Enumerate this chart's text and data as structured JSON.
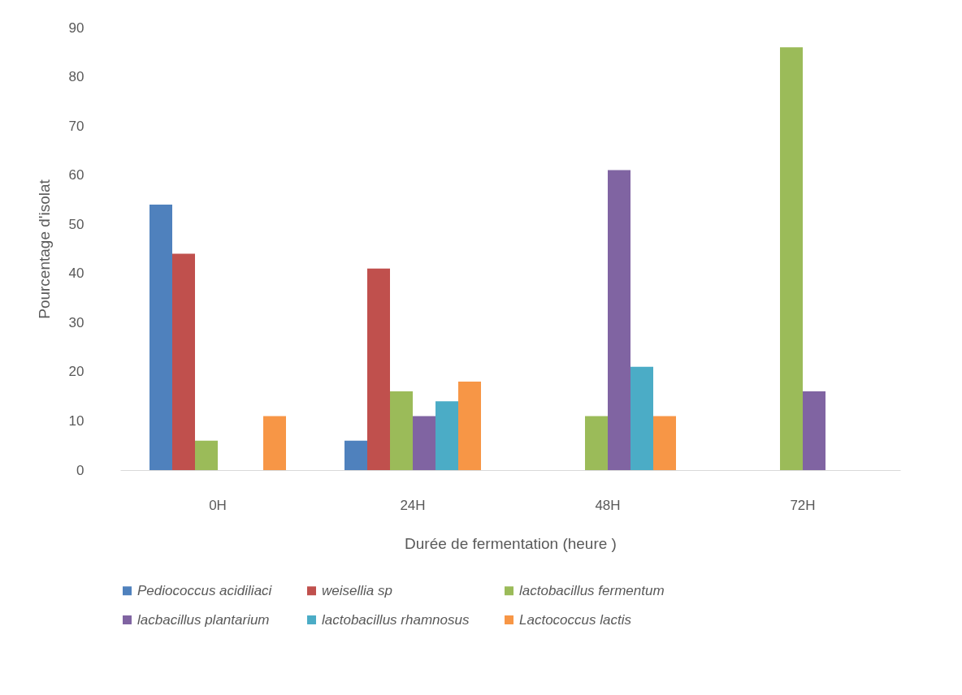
{
  "chart_data": {
    "type": "bar",
    "xlabel": "Durée de fermentation (heure )",
    "ylabel": "Pourcentage d'isolat",
    "categories": [
      "0H",
      "24H",
      "48H",
      "72H"
    ],
    "series": [
      {
        "name": "Pediococcus acidiliaci",
        "color": "#4f81bd",
        "values": [
          54,
          6,
          0,
          0
        ]
      },
      {
        "name": "weisellia sp",
        "color": "#c0504d",
        "values": [
          44,
          41,
          0,
          0
        ]
      },
      {
        "name": "lactobacillus fermentum",
        "color": "#9bbb59",
        "values": [
          6,
          16,
          11,
          86
        ]
      },
      {
        "name": "lacbacillus plantarium",
        "color": "#8064a2",
        "values": [
          0,
          11,
          61,
          16
        ]
      },
      {
        "name": "lactobacillus rhamnosus",
        "color": "#4bacc6",
        "values": [
          0,
          14,
          21,
          0
        ]
      },
      {
        "name": "Lactococcus lactis",
        "color": "#f79646",
        "values": [
          11,
          18,
          11,
          0
        ]
      }
    ],
    "ylim": [
      0,
      90
    ],
    "yticks": [
      0,
      10,
      20,
      30,
      40,
      50,
      60,
      70,
      80,
      90
    ],
    "grid": false,
    "legend": "bottom"
  }
}
